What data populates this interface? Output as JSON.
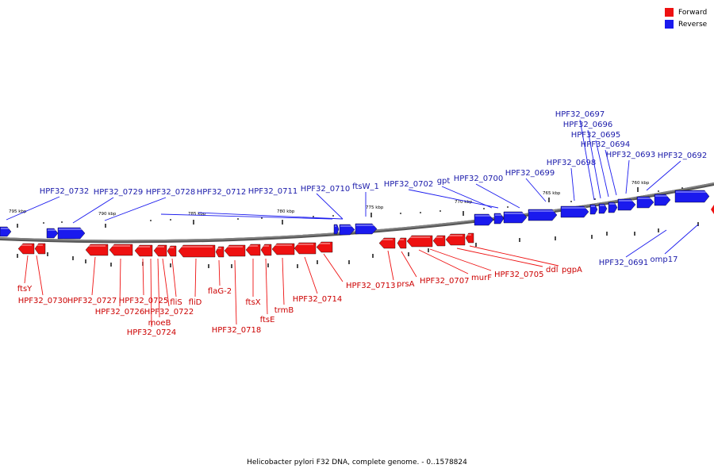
{
  "title": "Helicobacter pylori F32 DNA, complete genome. - 0..1578824",
  "legend": [
    {
      "label": "Forward",
      "color": "#ee1111"
    },
    {
      "label": "Reverse",
      "color": "#1a1aee"
    }
  ],
  "colors": {
    "forward": "#ee1111",
    "reverse": "#1a1aee",
    "backbone": "#808080"
  },
  "scale_labels": [
    "795 kbp",
    "790 kbp",
    "785 kbp",
    "780 kbp",
    "775 kbp",
    "770 kbp",
    "765 kbp",
    "760 kbp"
  ],
  "forward_genes": [
    "ftsY",
    "HPF32_0730",
    "HPF32_0727",
    "HPF32_0726",
    "HPF32_0725",
    "HPF32_0724",
    "moeB",
    "HPF32_0722",
    "fliS",
    "fliD",
    "flaG-2",
    "HPF32_0718",
    "ftsX",
    "ftsE",
    "trmB",
    "HPF32_0714",
    "HPF32_0713",
    "prsA",
    "HPF32_0707",
    "murF",
    "HPF32_0705",
    "ddl",
    "pgpA"
  ],
  "reverse_genes": [
    "HPF32_0732",
    "HPF32_0729",
    "HPF32_0728",
    "HPF32_0712",
    "HPF32_0711",
    "HPF32_0710",
    "ftsW_1",
    "HPF32_0702",
    "gpt",
    "HPF32_0700",
    "HPF32_0699",
    "HPF32_0698",
    "HPF32_0697",
    "HPF32_0696",
    "HPF32_0695",
    "HPF32_0694",
    "HPF32_0693",
    "HPF32_0692",
    "HPF32_0691",
    "omp17"
  ]
}
